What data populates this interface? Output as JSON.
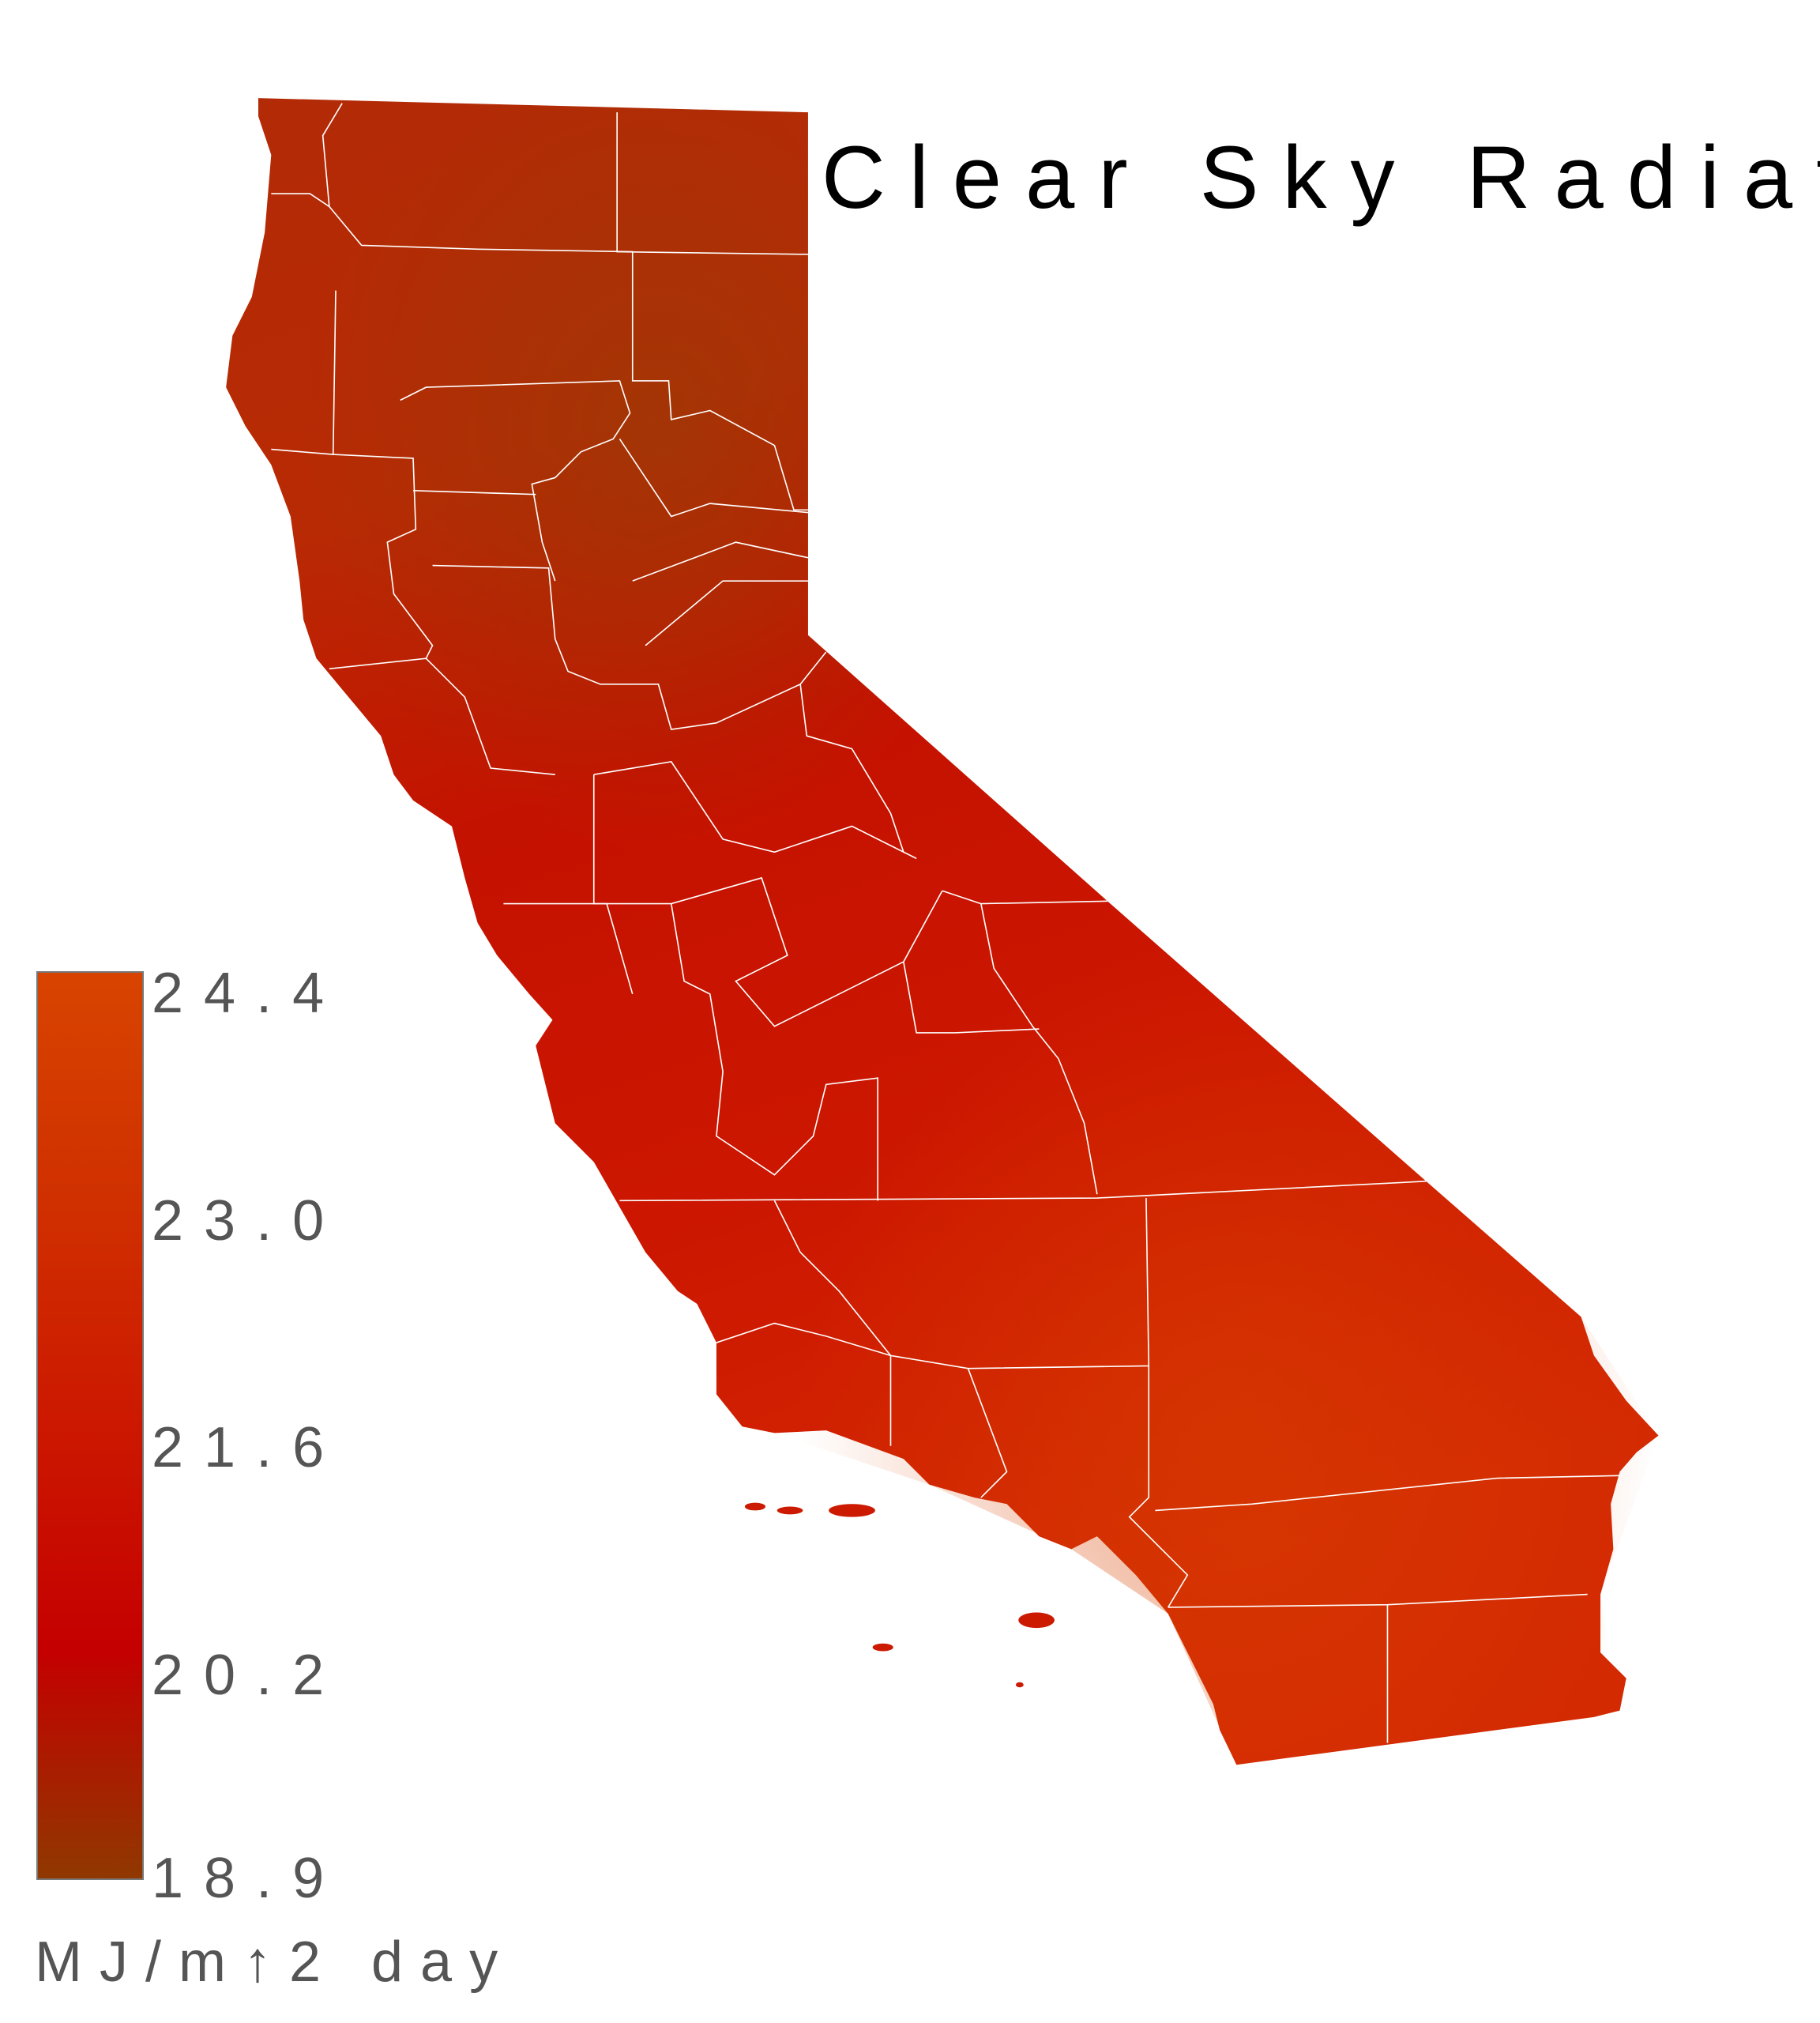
{
  "chart_data": {
    "type": "heatmap",
    "title": "Clear Sky Radiation",
    "region": "California (counties)",
    "colorbar": {
      "units": "MJ/m↑2 day",
      "ticks": [
        "24.4",
        "23.0",
        "21.6",
        "20.2",
        "18.9"
      ],
      "range": [
        18.9,
        24.4
      ],
      "colors": [
        "#d84400",
        "#d03000",
        "#cc1800",
        "#c40000",
        "#903800"
      ]
    },
    "county_borders_color": "#ffffff"
  }
}
